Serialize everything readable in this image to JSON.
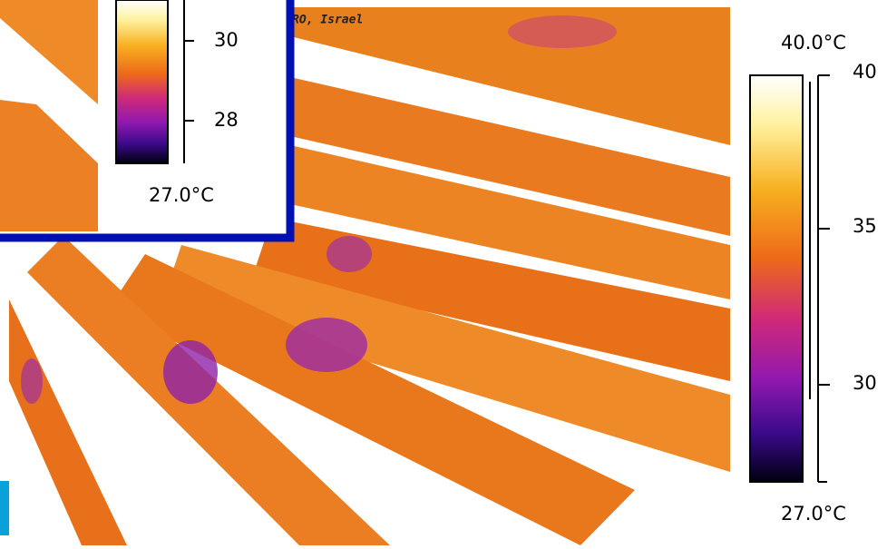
{
  "image_caption": "RO, Israel",
  "main_scale": {
    "max_label": "40.0°C",
    "min_label": "27.0°C",
    "ticks": [
      "40",
      "35",
      "30"
    ]
  },
  "inset_scale": {
    "min_label": "27.0°C",
    "ticks": [
      "30",
      "28"
    ]
  }
}
